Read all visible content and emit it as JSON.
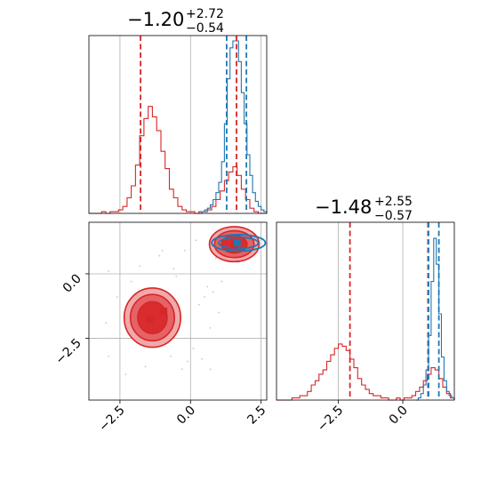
{
  "chart_data": {
    "type": "corner",
    "colors": {
      "red": "#d62728",
      "blue": "#1f77b4",
      "grid": "#b0b0b0",
      "scatter": "#c8c8c8"
    },
    "tick_values": [
      -2.5,
      0.0,
      2.5
    ],
    "tick_labels": [
      "−2.5",
      "0.0",
      "2.5"
    ],
    "panels": [
      {
        "id": "hist_param1",
        "title": {
          "main": "−1.20",
          "upper": "+2.72",
          "lower": "−0.54"
        },
        "xlim": [
          -3.6,
          2.7
        ],
        "series": [
          {
            "name": "",
            "color": "red",
            "bin_edges": [
              -3.6,
              -3.45,
              -3.3,
              -3.15,
              -3.0,
              -2.85,
              -2.7,
              -2.55,
              -2.4,
              -2.25,
              -2.1,
              -1.95,
              -1.8,
              -1.65,
              -1.5,
              -1.35,
              -1.2,
              -1.05,
              -0.9,
              -0.75,
              -0.6,
              -0.45,
              -0.3,
              -0.15,
              0.0,
              0.15,
              0.3,
              0.45,
              0.6,
              0.75,
              0.9,
              1.05,
              1.2,
              1.35,
              1.5,
              1.65,
              1.8,
              1.95,
              2.1,
              2.25,
              2.4,
              2.55,
              2.7
            ],
            "counts": [
              0,
              0,
              0,
              1,
              0,
              1,
              1,
              2,
              4,
              9,
              16,
              28,
              45,
              55,
              62,
              56,
              48,
              36,
              26,
              14,
              9,
              4,
              2,
              1,
              1,
              0,
              1,
              1,
              2,
              4,
              8,
              13,
              19,
              24,
              27,
              22,
              14,
              8,
              3,
              1,
              0,
              0
            ]
          },
          {
            "name": "",
            "color": "blue",
            "bin_edges": [
              0.3,
              0.4,
              0.5,
              0.6,
              0.7,
              0.8,
              0.9,
              1.0,
              1.1,
              1.2,
              1.3,
              1.4,
              1.5,
              1.6,
              1.7,
              1.8,
              1.9,
              2.0,
              2.1,
              2.2,
              2.3,
              2.4,
              2.5,
              2.6,
              2.7
            ],
            "counts": [
              0,
              1,
              2,
              3,
              5,
              8,
              12,
              18,
              30,
              52,
              78,
              96,
              100,
              100,
              88,
              70,
              52,
              34,
              22,
              12,
              7,
              4,
              2,
              1
            ]
          }
        ],
        "ylim": [
          0,
          100
        ],
        "quantiles": [
          {
            "x": -1.77,
            "color": "red"
          },
          {
            "x": 1.28,
            "color": "blue"
          },
          {
            "x": 1.63,
            "color": "red"
          },
          {
            "x": 1.98,
            "color": "blue"
          }
        ]
      },
      {
        "id": "scatter_param1_param2",
        "xlim": [
          -3.6,
          2.7
        ],
        "ylim": [
          -4.9,
          2.0
        ],
        "red_contours": [
          {
            "cx": -1.35,
            "cy": -1.7,
            "levels": [
              [
                1.0,
                1.15
              ],
              [
                0.78,
                0.9
              ],
              [
                0.52,
                0.62
              ]
            ]
          },
          {
            "cx": 1.55,
            "cy": 1.15,
            "levels": [
              [
                0.88,
                0.68
              ],
              [
                0.7,
                0.52
              ],
              [
                0.45,
                0.34
              ]
            ]
          }
        ],
        "blue_contours": [
          {
            "cx": 1.7,
            "cy": 1.2,
            "levels": [
              [
                0.95,
                0.32
              ],
              [
                0.7,
                0.22
              ]
            ]
          }
        ],
        "markers": [
          {
            "x": -1.45,
            "y": -1.75,
            "color": "red"
          },
          {
            "x": -0.95,
            "y": -1.45,
            "color": "red"
          },
          {
            "x": 1.55,
            "y": 1.12,
            "color": "red"
          },
          {
            "x": 1.65,
            "y": 1.2,
            "color": "blue"
          }
        ],
        "scatter_points": [
          [
            -2.6,
            -0.9
          ],
          [
            -2.5,
            0.6
          ],
          [
            -2.9,
            -3.2
          ],
          [
            -0.3,
            -3.7
          ],
          [
            0.3,
            -1.2
          ],
          [
            0.1,
            -2.9
          ],
          [
            -1.1,
            0.7
          ],
          [
            -1.0,
            0.9
          ],
          [
            -0.5,
            -0.1
          ],
          [
            0.6,
            -0.5
          ],
          [
            -2.3,
            -3.9
          ],
          [
            -1.8,
            0.3
          ],
          [
            -0.7,
            -3.2
          ],
          [
            0.4,
            -3.3
          ],
          [
            1.0,
            -1.5
          ],
          [
            0.8,
            -0.7
          ],
          [
            -2.1,
            -0.3
          ],
          [
            -2.8,
            -2.5
          ],
          [
            -0.2,
            0.9
          ],
          [
            0.2,
            1.3
          ],
          [
            0.9,
            0.6
          ],
          [
            0.5,
            -0.9
          ],
          [
            -0.6,
            0.2
          ],
          [
            -2.9,
            0.1
          ],
          [
            -1.6,
            -3.6
          ],
          [
            0.7,
            -2.1
          ],
          [
            -0.1,
            -3.4
          ],
          [
            1.1,
            -0.3
          ],
          [
            0.7,
            -3.7
          ],
          [
            -3.0,
            -1.9
          ]
        ]
      },
      {
        "id": "hist_param2",
        "title": {
          "main": "−1.48",
          "upper": "+2.55",
          "lower": "−0.57"
        },
        "xlim": [
          -4.9,
          2.0
        ],
        "series": [
          {
            "name": "",
            "color": "red",
            "bin_edges": [
              -4.9,
              -4.75,
              -4.6,
              -4.45,
              -4.3,
              -4.15,
              -4.0,
              -3.85,
              -3.7,
              -3.55,
              -3.4,
              -3.25,
              -3.1,
              -2.95,
              -2.8,
              -2.65,
              -2.5,
              -2.35,
              -2.2,
              -2.05,
              -1.9,
              -1.75,
              -1.6,
              -1.45,
              -1.3,
              -1.15,
              -1.0,
              -0.85,
              -0.7,
              -0.55,
              -0.4,
              -0.25,
              -0.1,
              0.05,
              0.2,
              0.35,
              0.5,
              0.65,
              0.8,
              0.95,
              1.1,
              1.25,
              1.4,
              1.55,
              1.7,
              1.85,
              2.0
            ],
            "counts": [
              0,
              0,
              0,
              0,
              1,
              1,
              2,
              2,
              4,
              7,
              9,
              12,
              14,
              18,
              21,
              24,
              26,
              25,
              23,
              19,
              15,
              10,
              7,
              5,
              3,
              2,
              2,
              1,
              1,
              0,
              0,
              1,
              0,
              1,
              1,
              2,
              4,
              6,
              9,
              12,
              15,
              14,
              10,
              6,
              3,
              1
            ]
          },
          {
            "name": "",
            "color": "blue",
            "bin_edges": [
              0.5,
              0.6,
              0.7,
              0.8,
              0.9,
              1.0,
              1.1,
              1.2,
              1.3,
              1.4,
              1.5,
              1.6,
              1.7,
              1.8,
              1.9,
              2.0
            ],
            "counts": [
              0,
              1,
              3,
              7,
              14,
              30,
              55,
              75,
              63,
              40,
              20,
              9,
              4,
              2,
              1
            ]
          }
        ],
        "ylim": [
          0,
          80
        ],
        "quantiles": [
          {
            "x": -2.05,
            "color": "red"
          },
          {
            "x": 0.98,
            "color": "red"
          },
          {
            "x": 1.0,
            "color": "blue"
          },
          {
            "x": 1.4,
            "color": "blue"
          }
        ]
      }
    ]
  }
}
